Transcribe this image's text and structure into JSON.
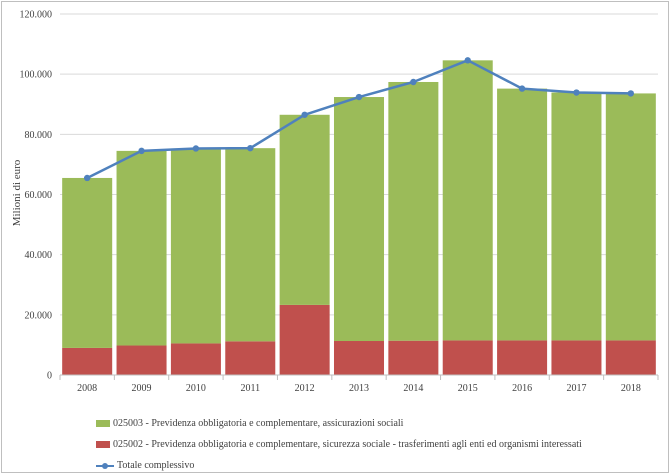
{
  "chart_data": {
    "type": "bar",
    "stacked": true,
    "categories": [
      "2008",
      "2009",
      "2010",
      "2011",
      "2012",
      "2013",
      "2014",
      "2015",
      "2016",
      "2017",
      "2018"
    ],
    "series": [
      {
        "name": "025002 - Previdenza obbligatoria e complementare, sicurezza sociale - trasferimenti agli enti ed organismi interessati",
        "kind": "bar",
        "color": "#c0504d",
        "values": [
          9000,
          9800,
          10500,
          11200,
          23300,
          11300,
          11400,
          11500,
          11500,
          11500,
          11500
        ]
      },
      {
        "name": "025003 - Previdenza obbligatoria e complementare, assicurazioni sociali",
        "kind": "bar",
        "color": "#9bbb59",
        "values": [
          56500,
          64700,
          64800,
          64200,
          63200,
          81100,
          86000,
          93100,
          83700,
          82400,
          82100
        ]
      },
      {
        "name": "Totale complessivo",
        "kind": "line",
        "color": "#4f81bd",
        "values": [
          65500,
          74500,
          75300,
          75400,
          86500,
          92400,
          97400,
          104600,
          95200,
          93900,
          93600
        ]
      }
    ],
    "ylabel": "Milioni di euro",
    "xlabel": "",
    "ylim": [
      0,
      120000
    ],
    "yticks": [
      "0",
      "20.000",
      "40.000",
      "60.000",
      "80.000",
      "100.000",
      "120.000"
    ],
    "ytick_values": [
      0,
      20000,
      40000,
      60000,
      80000,
      100000,
      120000
    ],
    "grid": "horizontal",
    "legend_position": "bottom",
    "legend_order": [
      1,
      0,
      2
    ]
  }
}
